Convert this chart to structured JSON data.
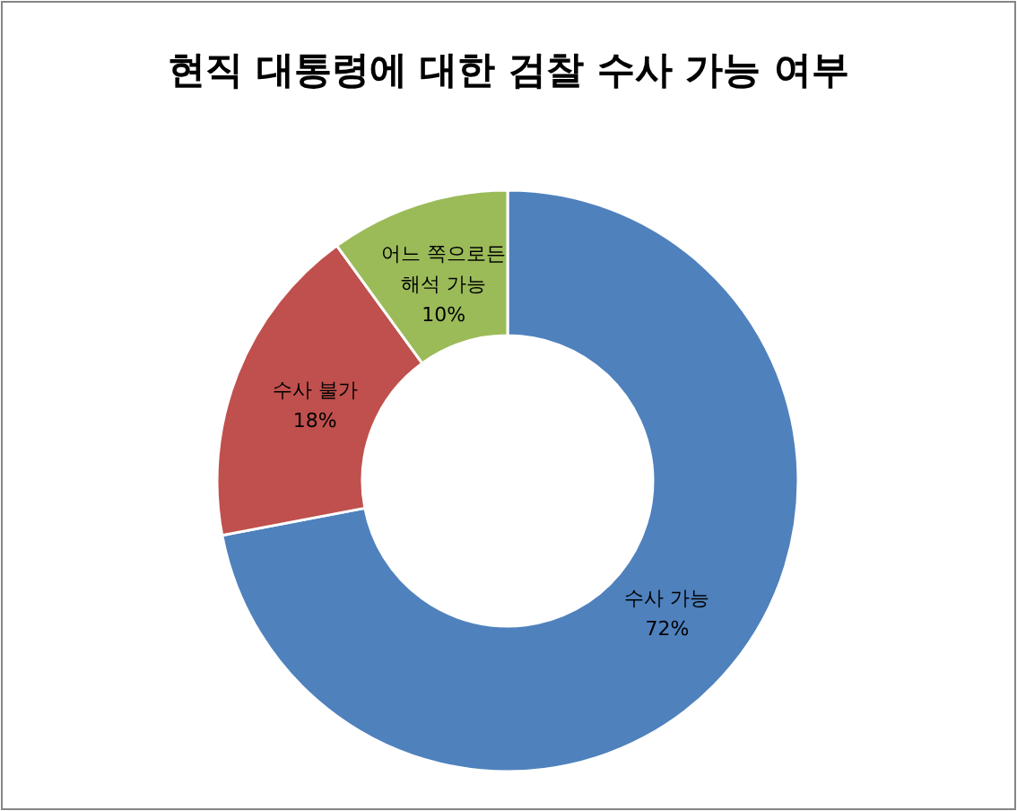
{
  "chart_data": {
    "type": "donut",
    "title": "현직 대통령에 대한 검찰 수사 가능 여부",
    "categories": [
      "수사 가능",
      "수사 불가",
      "어느 쪽으로든 해석 가능"
    ],
    "values": [
      72,
      18,
      10
    ],
    "colors": [
      "#4f81bd",
      "#c0504d",
      "#9bbb59"
    ],
    "value_labels": [
      "72%",
      "18%",
      "10%"
    ]
  }
}
